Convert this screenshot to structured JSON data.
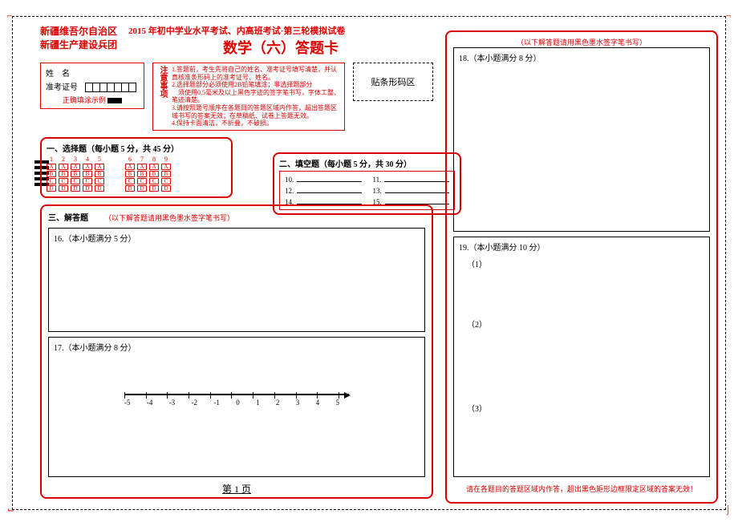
{
  "header": {
    "region_line1": "新疆维吾尔自治区",
    "region_line2": "新疆生产建设兵团",
    "title_line": "2015 年初中学业水平考试、内高班考试·第三轮模拟试卷",
    "title_main": "数学（六）答题卡"
  },
  "id_section": {
    "name_label": "姓　名",
    "ticket_label": "准考证号",
    "fill_example_label": "正确填涂示例"
  },
  "notice": {
    "label": "注意事项",
    "items": [
      "1.答题前，考生先将自己的姓名、准考证号填写清楚，并认真核准条形码上的准考证号、姓名。",
      "2.选择题部分必须使用2B铅笔填涂；非选择题部分",
      "　须使用0.5毫米及以上黑色字迹的签字笔书写，字体工整、笔迹清楚。",
      "3.请按照题号顺序在各题目的答题区域内作答，超出答题区域书写的答案无效；在草稿纸、试卷上答题无效。",
      "4.保持卡面清洁，不折叠，不破损。"
    ]
  },
  "barcode_label": "贴条形码区",
  "mc": {
    "title": "一、选择题（每小题 5 分，共 45 分）",
    "nums_a": [
      "1",
      "2",
      "3",
      "4",
      "5"
    ],
    "nums_b": [
      "6",
      "7",
      "8",
      "9"
    ],
    "opts": [
      "A",
      "B",
      "C",
      "D"
    ]
  },
  "fill": {
    "title": "二、填空题（每小题 5 分，共 30 分）",
    "items": [
      "10.",
      "11.",
      "12.",
      "13.",
      "14.",
      "15."
    ]
  },
  "answer": {
    "title": "三、解答题",
    "note": "（以下解答题请用黑色墨水签字笔书写）",
    "q16": "16.（本小题满分 5 分）",
    "q17": "17.（本小题满分 8 分）",
    "q18": "18.（本小题满分 8 分）",
    "q19": "19.（本小题满分 10 分）",
    "q19_sub1": "（1）",
    "q19_sub2": "（2）",
    "q19_sub3": "（3）"
  },
  "number_line": {
    "labels": [
      "-5",
      "-4",
      "-3",
      "-2",
      "-1",
      "0",
      "1",
      "2",
      "3",
      "4",
      "5"
    ]
  },
  "page_num": "第 1 页",
  "bottom_warning": "请在各题目的答题区域内作答，超出黑色矩形边框限定区域的答案无效！",
  "right_note": "（以下解答题请用黑色墨水签字笔书写）",
  "colors": {
    "accent": "#d00"
  }
}
